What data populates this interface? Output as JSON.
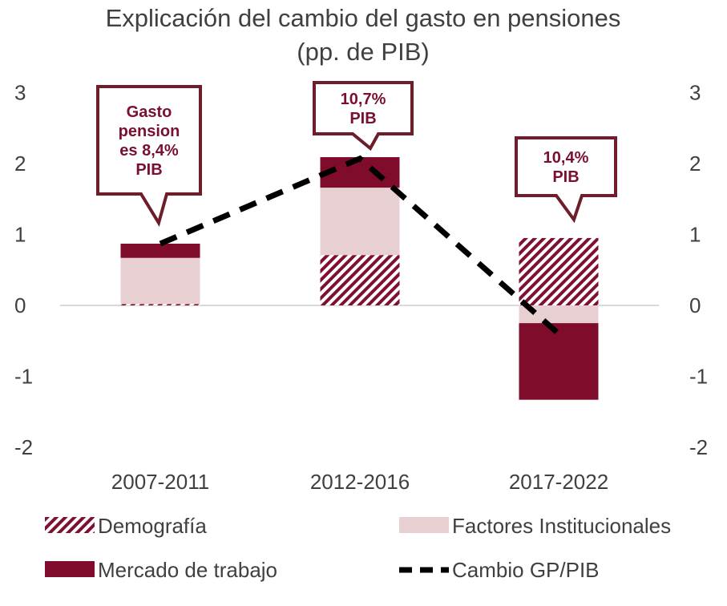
{
  "chart_data": {
    "type": "bar",
    "title": "Explicación del cambio del gasto en pensiones",
    "subtitle": "(pp. de PIB)",
    "categories": [
      "2007-2011",
      "2012-2016",
      "2017-2022"
    ],
    "ylim": [
      -2,
      3
    ],
    "yticks": [
      "-2",
      "-1",
      "0",
      "1",
      "2",
      "3"
    ],
    "stacked": true,
    "series": [
      {
        "name": "Demografía",
        "style": "hatch",
        "color": "#7f1030",
        "values": [
          0.02,
          0.71,
          0.95
        ]
      },
      {
        "name": "Factores Institucionales",
        "style": "solid",
        "color": "#e8cfd2",
        "values": [
          0.65,
          0.95,
          -0.25
        ]
      },
      {
        "name": "Mercado de trabajo",
        "style": "solid",
        "color": "#800c2b",
        "values": [
          0.2,
          0.43,
          -1.08
        ]
      }
    ],
    "line": {
      "name": "Cambio GP/PIB",
      "color": "#000000",
      "values": [
        0.87,
        2.07,
        -0.4
      ]
    },
    "annotations": [
      {
        "lines": [
          "Gasto",
          "pension",
          "es 8,4%",
          "PIB"
        ]
      },
      {
        "lines": [
          "10,7%",
          "PIB"
        ]
      },
      {
        "lines": [
          "10,4%",
          "PIB"
        ]
      }
    ],
    "legend_position": "bottom"
  }
}
